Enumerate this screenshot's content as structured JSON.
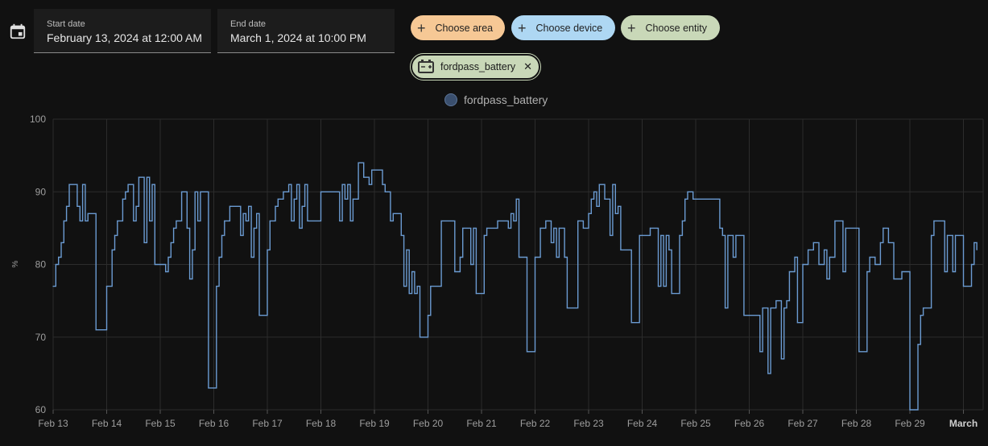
{
  "date_range": {
    "start_label": "Start date",
    "start_value": "February 13, 2024 at 12:00 AM",
    "end_label": "End date",
    "end_value": "March 1, 2024 at 10:00 PM"
  },
  "targets": {
    "area_label": "Choose area",
    "device_label": "Choose device",
    "entity_label": "Choose entity",
    "selected_entity": "fordpass_battery",
    "area_color": "#f6c895",
    "device_color": "#aed7f3",
    "entity_color": "#c9d8b8"
  },
  "icons": {
    "calendar": "calendar-icon",
    "battery": "battery-charging-icon",
    "remove": "close-icon",
    "add": "plus-icon"
  },
  "chart_data": {
    "type": "line",
    "step": true,
    "xlabel": "",
    "ylabel": "%",
    "ylim": [
      60,
      100
    ],
    "yticks": [
      60,
      70,
      80,
      90,
      100
    ],
    "x_range_days": [
      0,
      17.25
    ],
    "xticks": [
      {
        "day": 0,
        "label": "Feb 13",
        "bold": false
      },
      {
        "day": 1,
        "label": "Feb 14",
        "bold": false
      },
      {
        "day": 2,
        "label": "Feb 15",
        "bold": false
      },
      {
        "day": 3,
        "label": "Feb 16",
        "bold": false
      },
      {
        "day": 4,
        "label": "Feb 17",
        "bold": false
      },
      {
        "day": 5,
        "label": "Feb 18",
        "bold": false
      },
      {
        "day": 6,
        "label": "Feb 19",
        "bold": false
      },
      {
        "day": 7,
        "label": "Feb 20",
        "bold": false
      },
      {
        "day": 8,
        "label": "Feb 21",
        "bold": false
      },
      {
        "day": 9,
        "label": "Feb 22",
        "bold": false
      },
      {
        "day": 10,
        "label": "Feb 23",
        "bold": false
      },
      {
        "day": 11,
        "label": "Feb 24",
        "bold": false
      },
      {
        "day": 12,
        "label": "Feb 25",
        "bold": false
      },
      {
        "day": 13,
        "label": "Feb 26",
        "bold": false
      },
      {
        "day": 14,
        "label": "Feb 27",
        "bold": false
      },
      {
        "day": 15,
        "label": "Feb 28",
        "bold": false
      },
      {
        "day": 16,
        "label": "Feb 29",
        "bold": false
      },
      {
        "day": 17,
        "label": "March",
        "bold": true
      }
    ],
    "grid": true,
    "legend": "top-center",
    "series": [
      {
        "name": "fordpass_battery",
        "color": "#6b9bd2",
        "points": [
          [
            0.0,
            77
          ],
          [
            0.05,
            80
          ],
          [
            0.1,
            81
          ],
          [
            0.15,
            83
          ],
          [
            0.2,
            86
          ],
          [
            0.25,
            88
          ],
          [
            0.3,
            91
          ],
          [
            0.45,
            88
          ],
          [
            0.5,
            86
          ],
          [
            0.55,
            91
          ],
          [
            0.6,
            86
          ],
          [
            0.65,
            87
          ],
          [
            0.8,
            71
          ],
          [
            1.0,
            77
          ],
          [
            1.1,
            82
          ],
          [
            1.15,
            84
          ],
          [
            1.2,
            86
          ],
          [
            1.3,
            89
          ],
          [
            1.35,
            90
          ],
          [
            1.4,
            91
          ],
          [
            1.5,
            86
          ],
          [
            1.55,
            88
          ],
          [
            1.6,
            92
          ],
          [
            1.7,
            83
          ],
          [
            1.75,
            92
          ],
          [
            1.8,
            86
          ],
          [
            1.85,
            91
          ],
          [
            1.9,
            80
          ],
          [
            2.1,
            79
          ],
          [
            2.15,
            81
          ],
          [
            2.2,
            83
          ],
          [
            2.25,
            85
          ],
          [
            2.3,
            86
          ],
          [
            2.4,
            90
          ],
          [
            2.5,
            85
          ],
          [
            2.55,
            78
          ],
          [
            2.6,
            82
          ],
          [
            2.65,
            90
          ],
          [
            2.7,
            86
          ],
          [
            2.75,
            90
          ],
          [
            2.9,
            63
          ],
          [
            3.05,
            77
          ],
          [
            3.1,
            81
          ],
          [
            3.15,
            84
          ],
          [
            3.2,
            86
          ],
          [
            3.3,
            88
          ],
          [
            3.5,
            84
          ],
          [
            3.55,
            87
          ],
          [
            3.6,
            86
          ],
          [
            3.65,
            88
          ],
          [
            3.7,
            81
          ],
          [
            3.75,
            85
          ],
          [
            3.8,
            87
          ],
          [
            3.85,
            73
          ],
          [
            4.0,
            82
          ],
          [
            4.05,
            86
          ],
          [
            4.15,
            88
          ],
          [
            4.2,
            89
          ],
          [
            4.3,
            90
          ],
          [
            4.4,
            91
          ],
          [
            4.45,
            86
          ],
          [
            4.5,
            89
          ],
          [
            4.55,
            91
          ],
          [
            4.6,
            85
          ],
          [
            4.65,
            88
          ],
          [
            4.7,
            91
          ],
          [
            4.75,
            86
          ],
          [
            5.0,
            90
          ],
          [
            5.35,
            86
          ],
          [
            5.4,
            91
          ],
          [
            5.45,
            89
          ],
          [
            5.5,
            91
          ],
          [
            5.55,
            86
          ],
          [
            5.6,
            89
          ],
          [
            5.7,
            94
          ],
          [
            5.8,
            92
          ],
          [
            5.9,
            91
          ],
          [
            5.95,
            93
          ],
          [
            6.15,
            91
          ],
          [
            6.2,
            90
          ],
          [
            6.3,
            86
          ],
          [
            6.35,
            87
          ],
          [
            6.5,
            84
          ],
          [
            6.55,
            77
          ],
          [
            6.6,
            82
          ],
          [
            6.65,
            76
          ],
          [
            6.7,
            79
          ],
          [
            6.75,
            76
          ],
          [
            6.8,
            77
          ],
          [
            6.85,
            70
          ],
          [
            7.0,
            73
          ],
          [
            7.05,
            77
          ],
          [
            7.25,
            86
          ],
          [
            7.5,
            79
          ],
          [
            7.6,
            81
          ],
          [
            7.65,
            85
          ],
          [
            7.8,
            80
          ],
          [
            7.85,
            85
          ],
          [
            7.9,
            76
          ],
          [
            8.05,
            84
          ],
          [
            8.1,
            85
          ],
          [
            8.3,
            86
          ],
          [
            8.5,
            85
          ],
          [
            8.55,
            87
          ],
          [
            8.6,
            86
          ],
          [
            8.65,
            89
          ],
          [
            8.7,
            81
          ],
          [
            8.85,
            68
          ],
          [
            9.0,
            81
          ],
          [
            9.1,
            85
          ],
          [
            9.2,
            86
          ],
          [
            9.3,
            83
          ],
          [
            9.35,
            85
          ],
          [
            9.4,
            81
          ],
          [
            9.45,
            85
          ],
          [
            9.55,
            81
          ],
          [
            9.6,
            74
          ],
          [
            9.8,
            86
          ],
          [
            9.9,
            85
          ],
          [
            10.0,
            87
          ],
          [
            10.05,
            89
          ],
          [
            10.1,
            90
          ],
          [
            10.15,
            88
          ],
          [
            10.2,
            91
          ],
          [
            10.3,
            89
          ],
          [
            10.4,
            84
          ],
          [
            10.45,
            91
          ],
          [
            10.5,
            87
          ],
          [
            10.55,
            88
          ],
          [
            10.6,
            82
          ],
          [
            10.8,
            72
          ],
          [
            10.95,
            84
          ],
          [
            11.0,
            84
          ],
          [
            11.15,
            85
          ],
          [
            11.3,
            77
          ],
          [
            11.35,
            84
          ],
          [
            11.4,
            77
          ],
          [
            11.45,
            84
          ],
          [
            11.5,
            82
          ],
          [
            11.55,
            76
          ],
          [
            11.7,
            84
          ],
          [
            11.75,
            86
          ],
          [
            11.8,
            89
          ],
          [
            11.85,
            90
          ],
          [
            11.95,
            89
          ],
          [
            12.45,
            85
          ],
          [
            12.5,
            84
          ],
          [
            12.55,
            74
          ],
          [
            12.6,
            84
          ],
          [
            12.7,
            81
          ],
          [
            12.75,
            84
          ],
          [
            12.9,
            73
          ],
          [
            13.2,
            68
          ],
          [
            13.25,
            74
          ],
          [
            13.35,
            65
          ],
          [
            13.4,
            74
          ],
          [
            13.5,
            75
          ],
          [
            13.6,
            67
          ],
          [
            13.65,
            74
          ],
          [
            13.7,
            75
          ],
          [
            13.75,
            79
          ],
          [
            13.85,
            81
          ],
          [
            13.9,
            72
          ],
          [
            14.0,
            80
          ],
          [
            14.1,
            82
          ],
          [
            14.2,
            83
          ],
          [
            14.3,
            80
          ],
          [
            14.4,
            82
          ],
          [
            14.45,
            78
          ],
          [
            14.5,
            81
          ],
          [
            14.6,
            86
          ],
          [
            14.75,
            79
          ],
          [
            14.8,
            85
          ],
          [
            15.05,
            68
          ],
          [
            15.2,
            79
          ],
          [
            15.25,
            81
          ],
          [
            15.35,
            80
          ],
          [
            15.45,
            83
          ],
          [
            15.5,
            85
          ],
          [
            15.6,
            83
          ],
          [
            15.7,
            78
          ],
          [
            15.85,
            79
          ],
          [
            16.0,
            60
          ],
          [
            16.15,
            69
          ],
          [
            16.2,
            73
          ],
          [
            16.25,
            74
          ],
          [
            16.4,
            84
          ],
          [
            16.45,
            86
          ],
          [
            16.65,
            79
          ],
          [
            16.7,
            84
          ],
          [
            16.8,
            79
          ],
          [
            16.85,
            84
          ],
          [
            17.0,
            77
          ],
          [
            17.15,
            80
          ],
          [
            17.2,
            83
          ],
          [
            17.25,
            82
          ]
        ]
      }
    ]
  }
}
